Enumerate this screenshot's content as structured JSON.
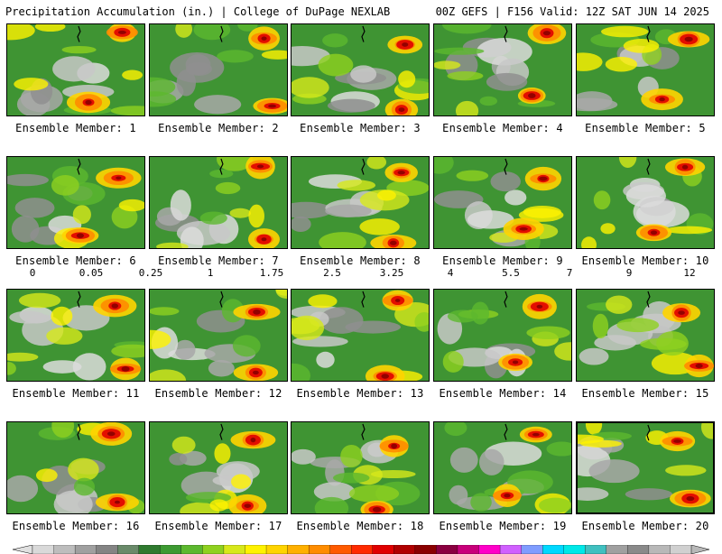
{
  "header": {
    "title": "Precipitation Accumulation (in.) | College of DuPage NEXLAB",
    "run_info": "00Z GEFS | F156 Valid: 12Z SAT JUN 14 2025"
  },
  "legend": {
    "labels": [
      "0",
      "0.05",
      "0.25",
      "1",
      "1.75",
      "2.5",
      "3.25",
      "4",
      "5.5",
      "7",
      "9",
      "12"
    ],
    "colors": [
      "#d9d9d9",
      "#bdbdbd",
      "#a0a0a0",
      "#848484",
      "#6a8a6a",
      "#2f7a2f",
      "#3d9a32",
      "#5cb82e",
      "#8fd11f",
      "#d7e81a",
      "#fff200",
      "#ffd400",
      "#ffb000",
      "#ff8c00",
      "#ff5a00",
      "#ff2a00",
      "#e00000",
      "#b00000",
      "#8a0000",
      "#8a0040",
      "#c8007a",
      "#ff00c8",
      "#d060ff",
      "#7f9cff",
      "#00d8ff",
      "#00e8e8",
      "#40c0c0",
      "#a0a0a0",
      "#8a8a8a",
      "#b8b8b8",
      "#d0d0d0"
    ]
  },
  "members": [
    {
      "label": "Ensemble Member: 1"
    },
    {
      "label": "Ensemble Member: 2"
    },
    {
      "label": "Ensemble Member: 3"
    },
    {
      "label": "Ensemble Member: 4"
    },
    {
      "label": "Ensemble Member: 5"
    },
    {
      "label": "Ensemble Member: 6"
    },
    {
      "label": "Ensemble Member: 7"
    },
    {
      "label": "Ensemble Member: 8"
    },
    {
      "label": "Ensemble Member: 9"
    },
    {
      "label": "Ensemble Member: 10"
    },
    {
      "label": "Ensemble Member: 11"
    },
    {
      "label": "Ensemble Member: 12"
    },
    {
      "label": "Ensemble Member: 13"
    },
    {
      "label": "Ensemble Member: 14"
    },
    {
      "label": "Ensemble Member: 15"
    },
    {
      "label": "Ensemble Member: 16"
    },
    {
      "label": "Ensemble Member: 17"
    },
    {
      "label": "Ensemble Member: 18"
    },
    {
      "label": "Ensemble Member: 19"
    },
    {
      "label": "Ensemble Member: 20"
    }
  ]
}
